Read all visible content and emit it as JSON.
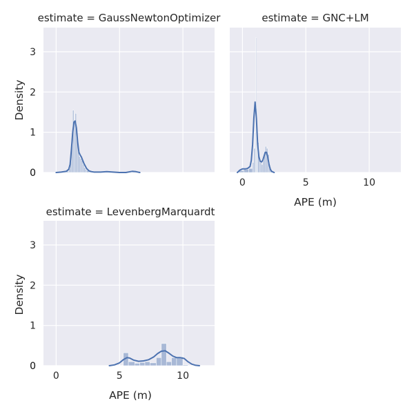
{
  "colors": {
    "accent": "#4c72b0",
    "panel": "#eaeaf2",
    "text": "#262626"
  },
  "chart_data": {
    "type": "area",
    "facet_variable": "estimate",
    "xlabel": "APE (m)",
    "ylabel": "Density",
    "xlim": [
      -1,
      12.5
    ],
    "ylim": [
      0,
      3.6
    ],
    "xticks": [
      0,
      5,
      10
    ],
    "yticks": [
      0,
      1,
      2,
      3
    ],
    "grid": true,
    "panels": [
      {
        "title": "estimate = GaussNewtonOptimizer",
        "show_xticks": false,
        "show_yticks": true,
        "show_xlabel": false,
        "show_ylabel": true,
        "histogram": {
          "edges": [
            0.0,
            0.2,
            0.4,
            0.6,
            0.8,
            1.0,
            1.1,
            1.2,
            1.3,
            1.4,
            1.5,
            1.6,
            1.7,
            1.8,
            1.9,
            2.0,
            2.1,
            2.2,
            2.3,
            2.4,
            2.6,
            3.0,
            4.0,
            6.0,
            6.5
          ],
          "densities": [
            0.02,
            0.02,
            0.02,
            0.02,
            0.03,
            0.1,
            0.3,
            0.8,
            1.55,
            1.3,
            1.47,
            0.9,
            0.5,
            0.4,
            0.35,
            0.3,
            0.2,
            0.12,
            0.08,
            0.05,
            0.03,
            0.01,
            0.01,
            0.03
          ]
        },
        "kde": {
          "x": [
            0.0,
            0.4,
            0.8,
            1.0,
            1.1,
            1.2,
            1.3,
            1.4,
            1.5,
            1.6,
            1.7,
            1.8,
            1.9,
            2.0,
            2.1,
            2.2,
            2.4,
            2.6,
            2.8,
            3.0,
            3.5,
            4.0,
            4.5,
            5.0,
            5.5,
            6.0,
            6.3,
            6.6
          ],
          "y": [
            0.0,
            0.01,
            0.03,
            0.08,
            0.2,
            0.55,
            0.98,
            1.25,
            1.28,
            1.1,
            0.75,
            0.5,
            0.43,
            0.38,
            0.3,
            0.22,
            0.1,
            0.04,
            0.02,
            0.01,
            0.01,
            0.02,
            0.01,
            0.0,
            0.0,
            0.03,
            0.02,
            0.0
          ]
        }
      },
      {
        "title": "estimate = GNC+LM",
        "show_xticks": true,
        "show_yticks": false,
        "show_xlabel": true,
        "show_ylabel": false,
        "histogram": {
          "edges": [
            -0.3,
            0.1,
            0.5,
            0.8,
            0.9,
            1.0,
            1.05,
            1.1,
            1.15,
            1.2,
            1.3,
            1.4,
            1.5,
            1.6,
            1.7,
            1.8,
            1.9,
            2.0,
            2.1,
            2.2,
            2.4
          ],
          "densities": [
            0.05,
            0.08,
            0.1,
            0.25,
            0.6,
            1.0,
            3.35,
            1.6,
            1.05,
            0.75,
            0.4,
            0.25,
            0.2,
            0.3,
            0.5,
            0.65,
            0.6,
            0.45,
            0.2,
            0.05
          ]
        },
        "kde": {
          "x": [
            -0.4,
            -0.2,
            0.0,
            0.2,
            0.4,
            0.6,
            0.7,
            0.8,
            0.9,
            1.0,
            1.1,
            1.2,
            1.3,
            1.4,
            1.5,
            1.6,
            1.7,
            1.8,
            1.9,
            2.0,
            2.1,
            2.2,
            2.3,
            2.5
          ],
          "y": [
            0.0,
            0.06,
            0.09,
            0.09,
            0.1,
            0.15,
            0.3,
            0.7,
            1.35,
            1.75,
            1.35,
            0.7,
            0.38,
            0.28,
            0.26,
            0.3,
            0.4,
            0.5,
            0.5,
            0.38,
            0.2,
            0.08,
            0.03,
            0.0
          ]
        }
      },
      {
        "title": "estimate = LevenbergMarquardt",
        "show_xticks": true,
        "show_yticks": true,
        "show_xlabel": true,
        "show_ylabel": true,
        "histogram": {
          "edges": [
            5.3,
            5.7,
            6.2,
            6.6,
            7.0,
            7.4,
            7.9,
            8.3,
            8.7,
            9.1,
            9.5,
            10.0,
            10.4
          ],
          "densities": [
            0.32,
            0.1,
            0.06,
            0.08,
            0.1,
            0.07,
            0.2,
            0.55,
            0.1,
            0.2,
            0.22,
            0.02
          ]
        },
        "kde": {
          "x": [
            4.2,
            4.6,
            5.0,
            5.3,
            5.6,
            5.8,
            6.1,
            6.5,
            6.9,
            7.3,
            7.7,
            8.0,
            8.3,
            8.6,
            8.9,
            9.2,
            9.5,
            9.8,
            10.1,
            10.4,
            10.7,
            11.0,
            11.3
          ],
          "y": [
            0.0,
            0.02,
            0.07,
            0.15,
            0.2,
            0.19,
            0.14,
            0.11,
            0.12,
            0.15,
            0.22,
            0.3,
            0.36,
            0.37,
            0.31,
            0.24,
            0.2,
            0.2,
            0.18,
            0.1,
            0.04,
            0.01,
            0.0
          ]
        }
      }
    ]
  }
}
